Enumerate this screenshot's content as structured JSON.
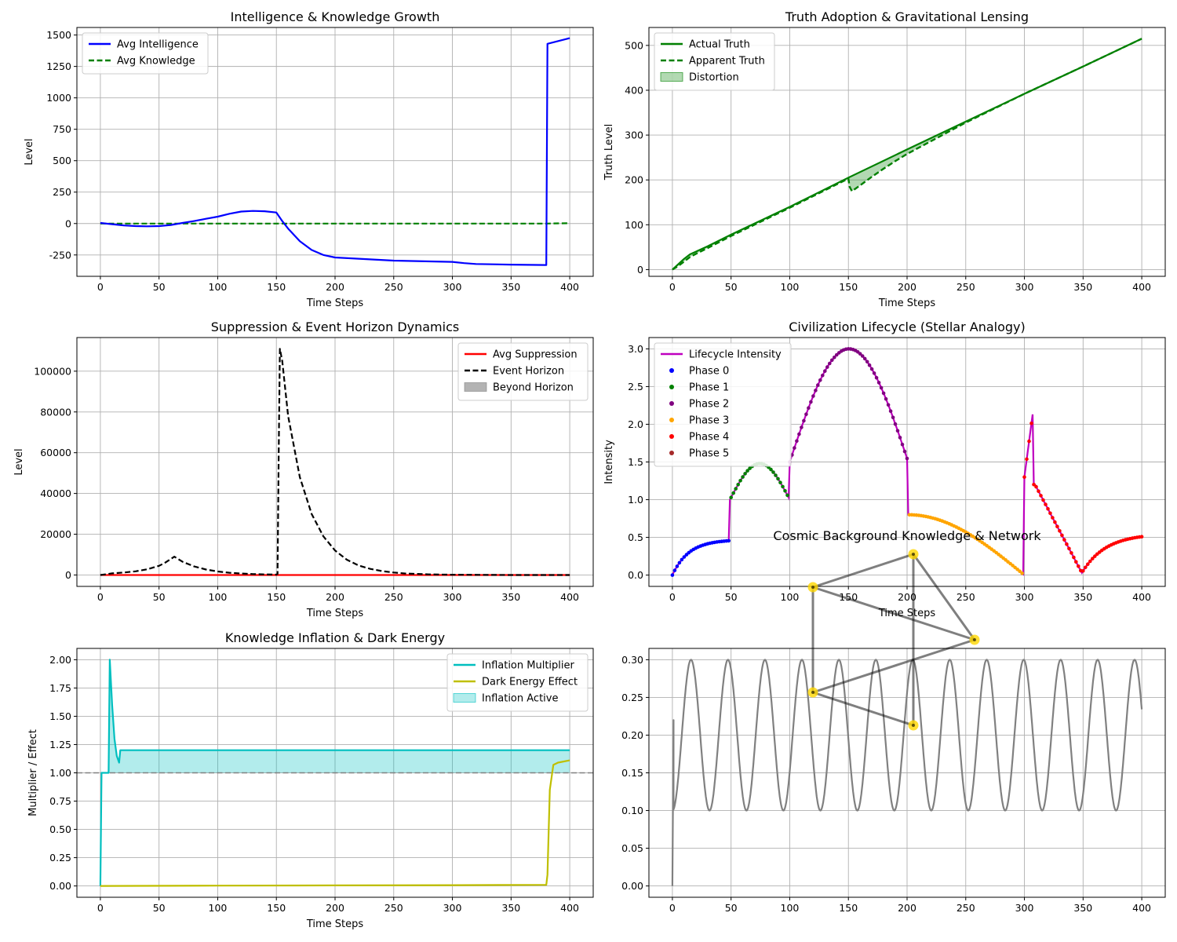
{
  "colors": {
    "blue": "#0000ff",
    "green": "#008000",
    "red": "#ff0000",
    "black": "#000000",
    "cyan": "#00bfbf",
    "olive": "#bfbf00",
    "magenta": "#bf00bf",
    "gray": "#808080",
    "phase0": "#0000ff",
    "phase1": "#008000",
    "phase2": "#800080",
    "phase3": "#ffa500",
    "phase4": "#ff0000",
    "phase5": "#a52a2a",
    "node": "#ffd700"
  },
  "chart_data": [
    {
      "id": "intelligence",
      "type": "line",
      "title": "Intelligence & Knowledge Growth",
      "xlabel": "Time Steps",
      "ylabel": "Level",
      "xlim": [
        -20,
        420
      ],
      "ylim": [
        -420,
        1560
      ],
      "xticks": [
        0,
        50,
        100,
        150,
        200,
        250,
        300,
        350,
        400
      ],
      "yticks": [
        -250,
        0,
        250,
        500,
        750,
        1000,
        1250,
        1500
      ],
      "legend": "upper left",
      "series": [
        {
          "name": "Avg Intelligence",
          "color": "blue",
          "style": "solid",
          "x": [
            0,
            10,
            20,
            30,
            40,
            50,
            60,
            70,
            80,
            90,
            100,
            110,
            120,
            130,
            140,
            150,
            155,
            160,
            170,
            180,
            190,
            200,
            250,
            300,
            310,
            320,
            350,
            380,
            381,
            400
          ],
          "y": [
            5,
            -5,
            -15,
            -20,
            -22,
            -20,
            -12,
            5,
            20,
            38,
            55,
            78,
            95,
            100,
            98,
            88,
            20,
            -40,
            -140,
            -210,
            -250,
            -270,
            -295,
            -305,
            -315,
            -322,
            -327,
            -330,
            1430,
            1475
          ]
        },
        {
          "name": "Avg Knowledge",
          "color": "green",
          "style": "dashed",
          "x": [
            0,
            100,
            200,
            300,
            380,
            400
          ],
          "y": [
            0,
            0,
            0,
            0,
            0,
            3
          ]
        }
      ]
    },
    {
      "id": "truth",
      "type": "line",
      "title": "Truth Adoption & Gravitational Lensing",
      "xlabel": "Time Steps",
      "ylabel": "Truth Level",
      "xlim": [
        -20,
        420
      ],
      "ylim": [
        -15,
        540
      ],
      "xticks": [
        0,
        50,
        100,
        150,
        200,
        250,
        300,
        350,
        400
      ],
      "yticks": [
        0,
        100,
        200,
        300,
        400,
        500
      ],
      "legend": "upper left",
      "series": [
        {
          "name": "Actual Truth",
          "color": "green",
          "style": "solid",
          "x": [
            0,
            5,
            10,
            15,
            20,
            30,
            50,
            100,
            150,
            200,
            250,
            300,
            350,
            400
          ],
          "y": [
            0,
            12,
            24,
            34,
            40,
            52,
            78,
            140,
            205,
            268,
            330,
            392,
            453,
            515
          ]
        },
        {
          "name": "Apparent Truth",
          "color": "green",
          "style": "dashed",
          "x": [
            0,
            5,
            10,
            15,
            20,
            30,
            50,
            100,
            150,
            151,
            153,
            160,
            170,
            180,
            190,
            200,
            210,
            250,
            300,
            350,
            400
          ],
          "y": [
            0,
            8,
            18,
            28,
            35,
            48,
            75,
            138,
            203,
            185,
            175,
            188,
            207,
            225,
            242,
            258,
            272,
            328,
            392,
            453,
            515
          ]
        },
        {
          "name": "Distortion",
          "color": "green",
          "style": "fill"
        }
      ]
    },
    {
      "id": "suppression",
      "type": "line",
      "title": "Suppression & Event Horizon Dynamics",
      "xlabel": "Time Steps",
      "ylabel": "Level",
      "xlim": [
        -20,
        420
      ],
      "ylim": [
        -5600,
        116500
      ],
      "xticks": [
        0,
        50,
        100,
        150,
        200,
        250,
        300,
        350,
        400
      ],
      "yticks": [
        0,
        20000,
        40000,
        60000,
        80000,
        100000
      ],
      "legend": "upper right",
      "series": [
        {
          "name": "Avg Suppression",
          "color": "red",
          "style": "solid",
          "x": [
            0,
            100,
            200,
            300,
            400
          ],
          "y": [
            0,
            0,
            0,
            0,
            0
          ]
        },
        {
          "name": "Event Horizon",
          "color": "black",
          "style": "dashed",
          "x": [
            0,
            10,
            20,
            30,
            40,
            50,
            55,
            60,
            63,
            70,
            80,
            90,
            100,
            110,
            120,
            130,
            140,
            150,
            151,
            152,
            153,
            155,
            160,
            170,
            180,
            190,
            200,
            210,
            220,
            230,
            240,
            250,
            260,
            280,
            300,
            350,
            400
          ],
          "y": [
            0,
            800,
            1200,
            1800,
            2800,
            4500,
            6000,
            7800,
            9000,
            6500,
            4200,
            2700,
            1700,
            1100,
            700,
            450,
            280,
            180,
            500,
            60000,
            111000,
            105000,
            78000,
            48000,
            30000,
            19000,
            12000,
            7500,
            4700,
            3000,
            1900,
            1200,
            700,
            300,
            120,
            0,
            0
          ]
        },
        {
          "name": "Beyond Horizon",
          "color": "gray",
          "style": "fill"
        }
      ]
    },
    {
      "id": "lifecycle",
      "type": "line",
      "title": "Civilization Lifecycle (Stellar Analogy)",
      "xlabel": "Time Steps",
      "ylabel": "Intensity",
      "xlim": [
        -20,
        420
      ],
      "ylim": [
        -0.15,
        3.15
      ],
      "xticks": [
        0,
        50,
        100,
        150,
        200,
        250,
        300,
        350,
        400
      ],
      "yticks": [
        0.0,
        0.5,
        1.0,
        1.5,
        2.0,
        2.5,
        3.0
      ],
      "legend": "upper left",
      "series": [
        {
          "name": "Lifecycle Intensity",
          "color": "magenta",
          "style": "solid"
        },
        {
          "name": "Phase 0",
          "color": "phase0",
          "style": "scatter"
        },
        {
          "name": "Phase 1",
          "color": "phase1",
          "style": "scatter"
        },
        {
          "name": "Phase 2",
          "color": "phase2",
          "style": "scatter"
        },
        {
          "name": "Phase 3",
          "color": "phase3",
          "style": "scatter"
        },
        {
          "name": "Phase 4",
          "color": "phase4",
          "style": "scatter"
        },
        {
          "name": "Phase 5",
          "color": "phase5",
          "style": "scatter"
        }
      ]
    },
    {
      "id": "inflation",
      "type": "line",
      "title": "Knowledge Inflation & Dark Energy",
      "xlabel": "Time Steps",
      "ylabel": "Multiplier / Effect",
      "xlim": [
        -20,
        420
      ],
      "ylim": [
        -0.1,
        2.1
      ],
      "xticks": [
        0,
        50,
        100,
        150,
        200,
        250,
        300,
        350,
        400
      ],
      "yticks": [
        0.0,
        0.25,
        0.5,
        0.75,
        1.0,
        1.25,
        1.5,
        1.75,
        2.0
      ],
      "legend": "upper right",
      "series": [
        {
          "name": "Inflation Multiplier",
          "color": "cyan",
          "style": "solid",
          "x": [
            0,
            1,
            2,
            5,
            7,
            8,
            10,
            12,
            14,
            16,
            17,
            18,
            50,
            100,
            200,
            300,
            400
          ],
          "y": [
            0.0,
            1.0,
            1.0,
            1.0,
            1.0,
            2.0,
            1.6,
            1.3,
            1.15,
            1.09,
            1.2,
            1.2,
            1.2,
            1.2,
            1.2,
            1.2,
            1.2
          ]
        },
        {
          "name": "Dark Energy Effect",
          "color": "olive",
          "style": "solid",
          "x": [
            0,
            100,
            200,
            300,
            380,
            381,
            383,
            386,
            390,
            400
          ],
          "y": [
            0.0,
            0.003,
            0.005,
            0.007,
            0.01,
            0.1,
            0.85,
            1.07,
            1.09,
            1.11
          ]
        },
        {
          "name": "Inflation Active",
          "color": "cyan",
          "style": "fill"
        }
      ],
      "reference_line_y": 1.0
    },
    {
      "id": "cosmic",
      "type": "line",
      "title": "Cosmic Background Knowledge & Network",
      "xlabel": "",
      "ylabel": "",
      "xlim": [
        -20,
        420
      ],
      "ylim": [
        -0.015,
        0.315
      ],
      "xticks": [
        0,
        50,
        100,
        150,
        200,
        250,
        300,
        350,
        400
      ],
      "yticks": [
        0.0,
        0.05,
        0.1,
        0.15,
        0.2,
        0.25,
        0.3
      ],
      "wave": {
        "start": 0.22,
        "amplitude": 0.1,
        "mean": 0.2,
        "period": 31.5,
        "phase_x": 8
      },
      "network_nodes": 5,
      "network_edges": [
        [
          0,
          1
        ],
        [
          0,
          2
        ],
        [
          1,
          2
        ],
        [
          0,
          3
        ],
        [
          1,
          4
        ],
        [
          2,
          3
        ],
        [
          3,
          4
        ]
      ]
    }
  ]
}
